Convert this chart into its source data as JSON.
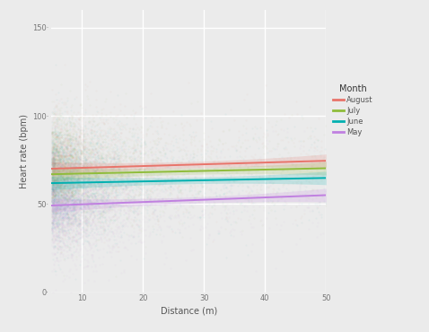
{
  "background_color": "#ebebeb",
  "plot_bg_color": "#ebebeb",
  "grid_color": "#ffffff",
  "xlim": [
    5,
    50
  ],
  "ylim": [
    0,
    160
  ],
  "xticks": [
    10,
    20,
    30,
    40,
    50
  ],
  "yticks": [
    0,
    50,
    100,
    150
  ],
  "xlabel": "Distance (m)",
  "ylabel": "Heart rate (bpm)",
  "legend_title": "Month",
  "months": [
    "August",
    "July",
    "June",
    "May"
  ],
  "line_colors": [
    "#e8746a",
    "#8fbc3a",
    "#00b0b0",
    "#c080e0"
  ],
  "scatter_colors": [
    "#e8746a",
    "#8fbc3a",
    "#00b0b0",
    "#c080e0"
  ],
  "lines": [
    {
      "intercept": 69.5,
      "slope": 0.1
    },
    {
      "intercept": 66.5,
      "slope": 0.075
    },
    {
      "intercept": 61.5,
      "slope": 0.065
    },
    {
      "intercept": 48.5,
      "slope": 0.13
    }
  ],
  "scatter_alpha": 0.04,
  "scatter_size": 2.5,
  "ci_alpha": 0.18,
  "n_pts": 3000
}
